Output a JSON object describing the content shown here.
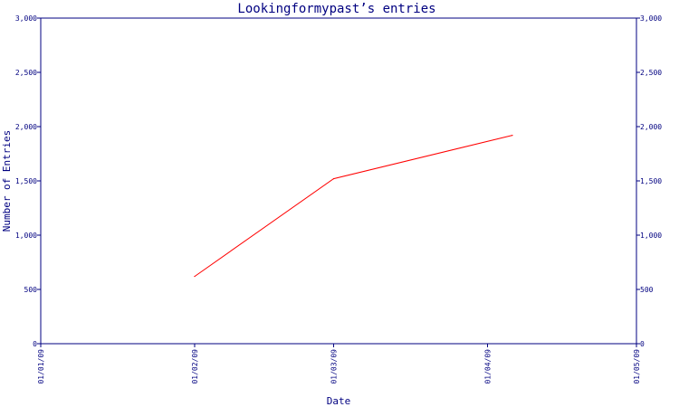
{
  "chart_data": {
    "type": "line",
    "title": "Lookingformypast’s entries",
    "xlabel": "Date",
    "ylabel": "Number of Entries",
    "x_tick_labels": [
      "01/01/09",
      "01/02/09",
      "01/03/09",
      "01/04/09",
      "01/05/09"
    ],
    "y_tick_labels": [
      "0",
      "500",
      "1,000",
      "1,500",
      "2,000",
      "2,500",
      "3,000"
    ],
    "y_ticks": [
      0,
      500,
      1000,
      1500,
      2000,
      2500,
      3000
    ],
    "ylim": [
      0,
      3000
    ],
    "xlim": [
      "2009-01-01",
      "2009-05-01"
    ],
    "grid": false,
    "series": [
      {
        "color": "#ff0000",
        "points": [
          {
            "x": "2009-02-01",
            "y": 620
          },
          {
            "x": "2009-03-01",
            "y": 1520
          },
          {
            "x": "2009-04-06",
            "y": 1920
          }
        ]
      }
    ],
    "axis_color": "#000080"
  }
}
